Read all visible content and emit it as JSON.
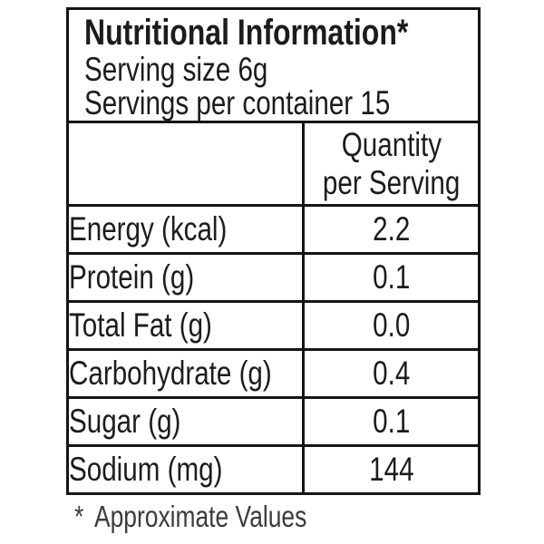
{
  "label": {
    "title": "Nutritional Information*",
    "serving_size": "Serving size 6g",
    "servings_per_container": "Servings per container 15",
    "value_column_header": {
      "line1": "Quantity",
      "line2": "per Serving"
    },
    "rows": [
      {
        "label": "Energy (kcal)",
        "value": "2.2"
      },
      {
        "label": "Protein (g)",
        "value": "0.1"
      },
      {
        "label": "Total Fat (g)",
        "value": "0.0"
      },
      {
        "label": "Carbohydrate (g)",
        "value": "0.4"
      },
      {
        "label": "Sugar (g)",
        "value": "0.1"
      },
      {
        "label": "Sodium (mg)",
        "value": "144"
      }
    ],
    "footnote_marker": "*",
    "footnote_text": "Approximate Values",
    "colors": {
      "background": "#ffffff",
      "border": "#151515",
      "text": "#1c1c1c",
      "footnote_text_color": "#3b3b3b"
    }
  }
}
